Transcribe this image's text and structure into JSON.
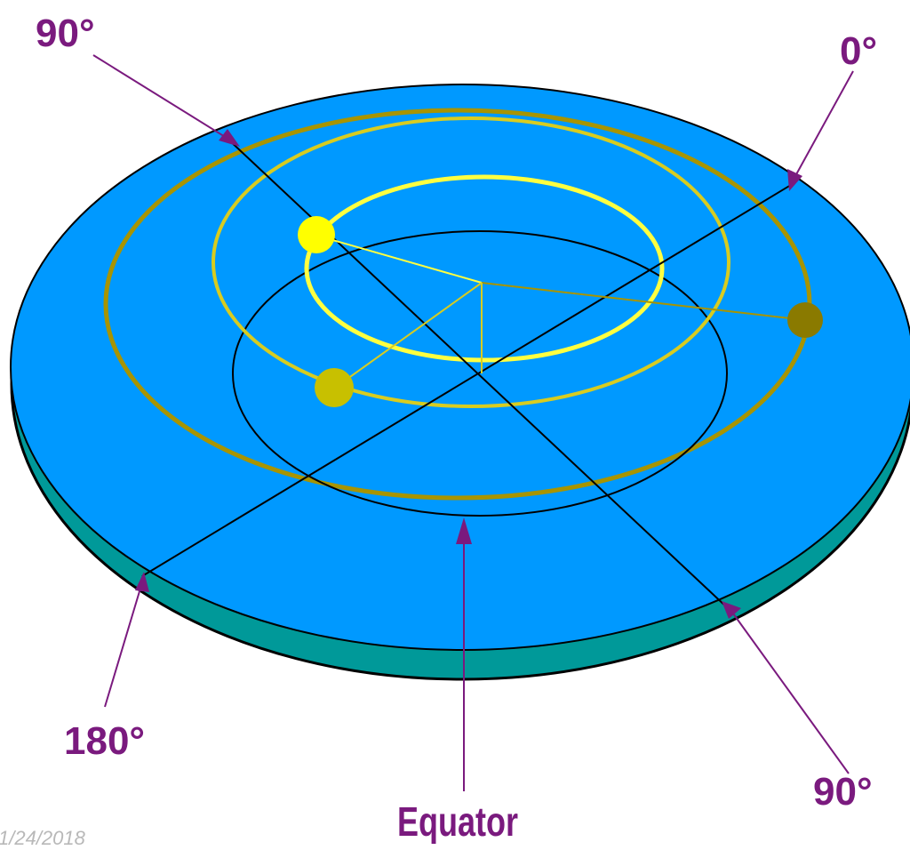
{
  "labels": {
    "top_left_degree": "90°",
    "top_right_degree": "0°",
    "bottom_left_degree": "180°",
    "bottom_right_degree": "90°",
    "equator": "Equator"
  },
  "footer": {
    "date": "1/24/2018"
  },
  "colors": {
    "disk_face": "#0099ff",
    "disk_rim": "#009999",
    "outer_orbit": "#a89400",
    "middle_orbit": "#d8cc20",
    "inner_orbit": "#ffff40",
    "sun_inner": "#ffff00",
    "sun_middle": "#c8c000",
    "sun_outer": "#8a7a00",
    "pointer": "#7a1a7e",
    "line": "#000000"
  }
}
